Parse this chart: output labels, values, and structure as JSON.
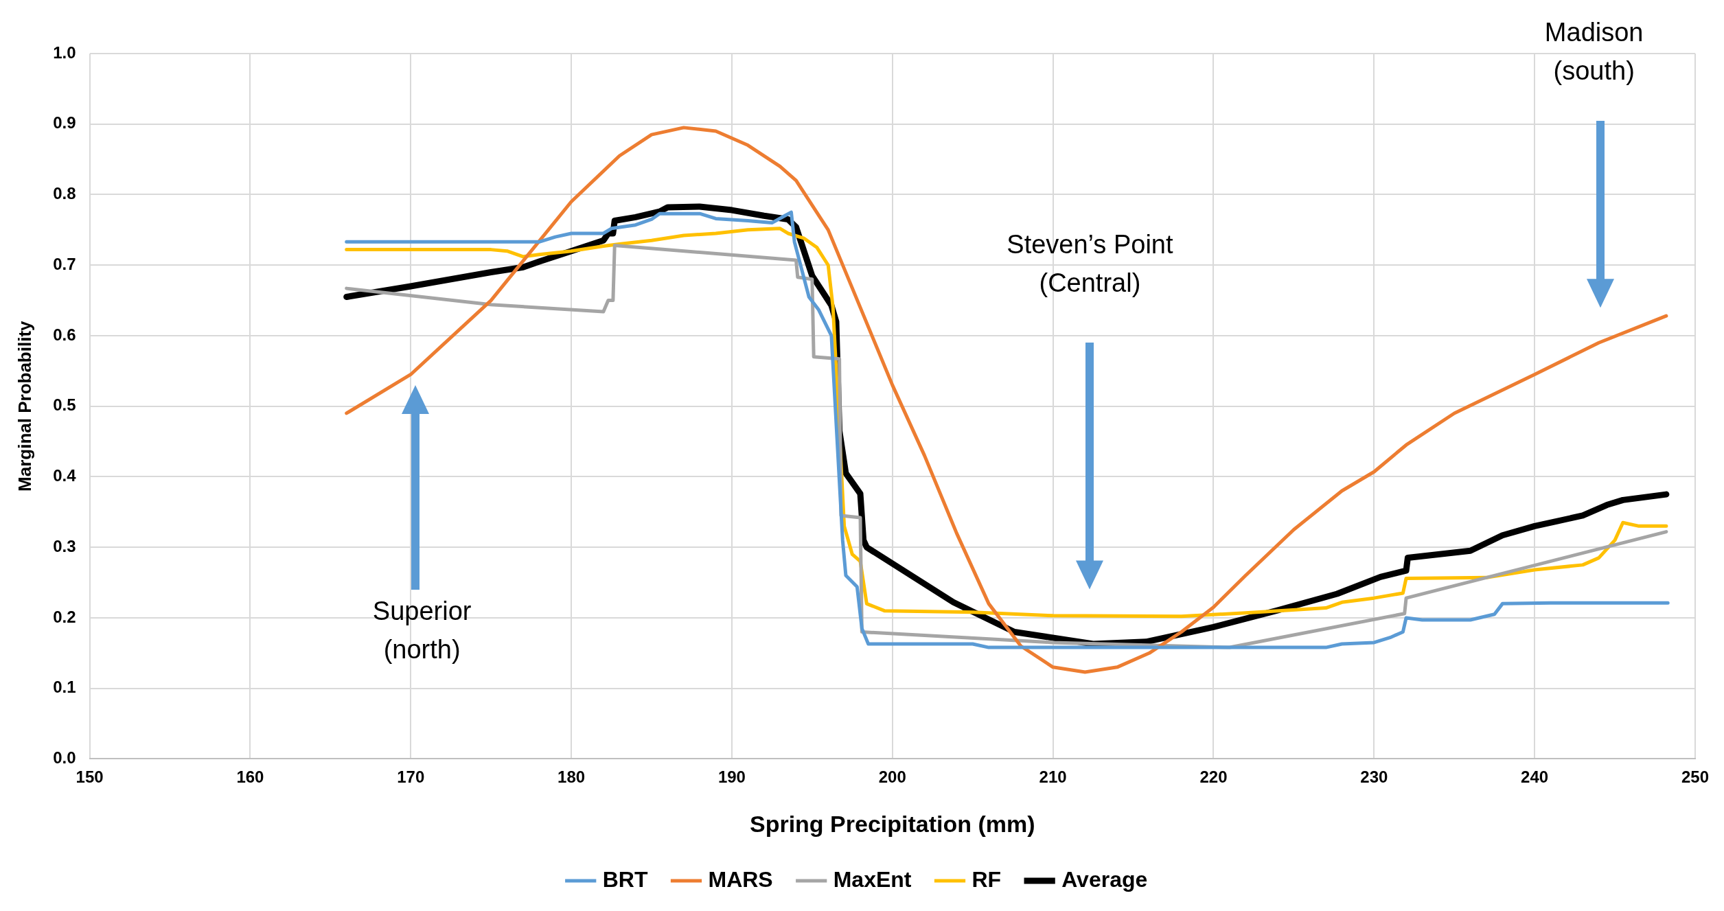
{
  "chart_data": {
    "type": "line",
    "xlabel": "Spring Precipitation (mm)",
    "ylabel": "Marginal Probability",
    "xlim": [
      150,
      250
    ],
    "xticks": [
      150,
      160,
      170,
      180,
      190,
      200,
      210,
      220,
      230,
      240,
      250
    ],
    "ylim": [
      0,
      1
    ],
    "yticks": [
      {
        "value": 0,
        "label": "0.0"
      },
      {
        "value": 0.1,
        "label": "0.1"
      },
      {
        "value": 0.2,
        "label": "0.2"
      },
      {
        "value": 0.3,
        "label": "0.3"
      },
      {
        "value": 0.4,
        "label": "0.4"
      },
      {
        "value": 0.5,
        "label": "0.5"
      },
      {
        "value": 0.6,
        "label": "0.6"
      },
      {
        "value": 0.7,
        "label": "0.7"
      },
      {
        "value": 0.8,
        "label": "0.8"
      },
      {
        "value": 0.9,
        "label": "0.9"
      },
      {
        "value": 1,
        "label": "1.0"
      }
    ],
    "grid": true,
    "legend": "bottom",
    "marker": "none",
    "line_style": "solid",
    "annotations": [
      "Superior\n(north)",
      "Steven’s Point\n(Central)",
      "Madison\n(south)"
    ],
    "series": [
      {
        "name": "BRT",
        "color": "#5b9bd5",
        "x": [
          166,
          178,
          179,
          180,
          182,
          182.5,
          184,
          185,
          185.5,
          188,
          189,
          191,
          192.5,
          193.3,
          193.7,
          193.9,
          194.8,
          195.4,
          196.2,
          196.9,
          197.1,
          197.8,
          198.1,
          198.5,
          205,
          206,
          227,
          228,
          230,
          231,
          231.8,
          232,
          233,
          236,
          237.5,
          238,
          241,
          248.3
        ],
        "values": [
          0.733,
          0.733,
          0.74,
          0.745,
          0.745,
          0.752,
          0.757,
          0.765,
          0.773,
          0.773,
          0.766,
          0.763,
          0.76,
          0.77,
          0.775,
          0.733,
          0.655,
          0.637,
          0.6,
          0.31,
          0.26,
          0.244,
          0.185,
          0.163,
          0.163,
          0.158,
          0.158,
          0.163,
          0.165,
          0.172,
          0.18,
          0.2,
          0.197,
          0.197,
          0.205,
          0.22,
          0.221,
          0.221
        ]
      },
      {
        "name": "MARS",
        "color": "#ed7d31",
        "x": [
          166,
          170,
          175,
          180,
          183,
          185,
          187,
          189,
          191,
          193,
          194,
          196,
          198,
          200,
          202,
          204,
          206,
          208,
          210,
          212,
          214,
          216,
          218,
          220,
          222,
          225,
          228,
          230,
          232,
          235,
          240,
          244,
          248.2
        ],
        "values": [
          0.49,
          0.545,
          0.65,
          0.79,
          0.855,
          0.885,
          0.895,
          0.89,
          0.87,
          0.84,
          0.82,
          0.75,
          0.64,
          0.53,
          0.43,
          0.32,
          0.22,
          0.16,
          0.13,
          0.123,
          0.13,
          0.15,
          0.18,
          0.215,
          0.26,
          0.325,
          0.38,
          0.407,
          0.445,
          0.49,
          0.545,
          0.59,
          0.628
        ]
      },
      {
        "name": "MaxEnt",
        "color": "#a5a5a5",
        "x": [
          166,
          175,
          182,
          182.3,
          182.6,
          182.7,
          194,
          194.1,
          195,
          195.1,
          196.7,
          196.8,
          198,
          198.1,
          210,
          221,
          231.9,
          232,
          248.2
        ],
        "values": [
          0.667,
          0.644,
          0.634,
          0.65,
          0.65,
          0.728,
          0.707,
          0.683,
          0.68,
          0.57,
          0.567,
          0.345,
          0.342,
          0.18,
          0.165,
          0.158,
          0.206,
          0.228,
          0.322
        ]
      },
      {
        "name": "RF",
        "color": "#ffc000",
        "x": [
          166,
          175,
          176,
          177,
          178,
          180,
          182,
          183,
          185,
          187,
          189,
          191,
          193,
          193.5,
          194.5,
          195.3,
          196,
          196.3,
          197,
          197.5,
          198,
          198.4,
          199.5,
          205,
          210,
          218,
          222,
          227,
          228,
          230,
          231.8,
          232,
          237,
          240,
          243,
          244,
          245,
          245.5,
          246.5,
          248.2
        ],
        "values": [
          0.722,
          0.722,
          0.72,
          0.712,
          0.715,
          0.72,
          0.727,
          0.73,
          0.735,
          0.742,
          0.745,
          0.75,
          0.752,
          0.745,
          0.738,
          0.725,
          0.7,
          0.64,
          0.33,
          0.29,
          0.28,
          0.22,
          0.21,
          0.208,
          0.203,
          0.202,
          0.207,
          0.214,
          0.222,
          0.228,
          0.235,
          0.256,
          0.257,
          0.268,
          0.275,
          0.285,
          0.31,
          0.335,
          0.33,
          0.33
        ]
      },
      {
        "name": "Average",
        "color": "#000000",
        "x": [
          166,
          170,
          175,
          177,
          178,
          180,
          182,
          182.3,
          182.6,
          182.7,
          184,
          185.5,
          186,
          188,
          190,
          192,
          193.5,
          194,
          195,
          196.2,
          196.5,
          196.7,
          197.1,
          198,
          198.2,
          198.4,
          203.8,
          207.6,
          212.5,
          215.8,
          220,
          223.9,
          227.7,
          230.4,
          232,
          232.1,
          236,
          238,
          240,
          243,
          244.5,
          245.5,
          248.2
        ],
        "values": [
          0.655,
          0.67,
          0.69,
          0.697,
          0.705,
          0.72,
          0.735,
          0.745,
          0.745,
          0.763,
          0.768,
          0.776,
          0.782,
          0.783,
          0.778,
          0.77,
          0.765,
          0.754,
          0.685,
          0.643,
          0.62,
          0.465,
          0.405,
          0.376,
          0.31,
          0.3,
          0.222,
          0.18,
          0.163,
          0.166,
          0.187,
          0.21,
          0.234,
          0.258,
          0.267,
          0.285,
          0.295,
          0.317,
          0.33,
          0.345,
          0.36,
          0.367,
          0.375
        ]
      }
    ]
  }
}
